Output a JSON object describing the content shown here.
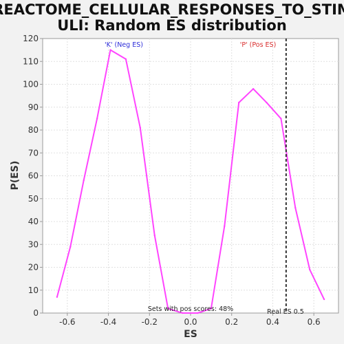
{
  "chart_data": {
    "type": "line",
    "title_lines": [
      "REACTOME_CELLULAR_RESPONSES_TO_STIM",
      "ULI: Random ES distribution"
    ],
    "xlabel": "ES",
    "ylabel": "P(ES)",
    "xlim": [
      -0.72,
      0.72
    ],
    "ylim": [
      0,
      120
    ],
    "x_ticks": [
      -0.6,
      -0.4,
      -0.2,
      0.0,
      0.2,
      0.4,
      0.6
    ],
    "x_tick_labels": [
      "-0.6",
      "-0.4",
      "-0.2",
      "0.0",
      "0.2",
      "0.4",
      "0.6"
    ],
    "y_ticks": [
      0,
      10,
      20,
      30,
      40,
      50,
      60,
      70,
      80,
      90,
      100,
      110,
      120
    ],
    "y_tick_labels": [
      "0",
      "10",
      "20",
      "30",
      "40",
      "50",
      "60",
      "70",
      "80",
      "90",
      "100",
      "110",
      "120"
    ],
    "grid": true,
    "series": [
      {
        "color": "#ff44ff",
        "x": [
          -0.65,
          -0.585,
          -0.52,
          -0.455,
          -0.39,
          -0.315,
          -0.245,
          -0.175,
          -0.11,
          -0.04,
          0.035,
          0.1,
          0.165,
          0.235,
          0.305,
          0.37,
          0.44,
          0.51,
          0.58,
          0.65
        ],
        "y": [
          7,
          29,
          58,
          85,
          115,
          111,
          81,
          34,
          2,
          0,
          0,
          2,
          38,
          92,
          98,
          92,
          85,
          46,
          19,
          6
        ]
      }
    ],
    "vline": {
      "x": 0.465,
      "label": "Real ES 0.5",
      "color": "#333333"
    },
    "annotations": {
      "neg_label": "'K' (Neg ES)",
      "neg_color": "#2b2bd9",
      "pos_label": "'P' (Pos ES)",
      "pos_color": "#d92b2b",
      "pos_scores_text": "Sets with pos scores: 48%"
    },
    "colors": {
      "page_bg": "#f2f2f2",
      "plot_bg": "#ffffff",
      "grid": "#e0e0e0",
      "axis": "#999999"
    }
  }
}
